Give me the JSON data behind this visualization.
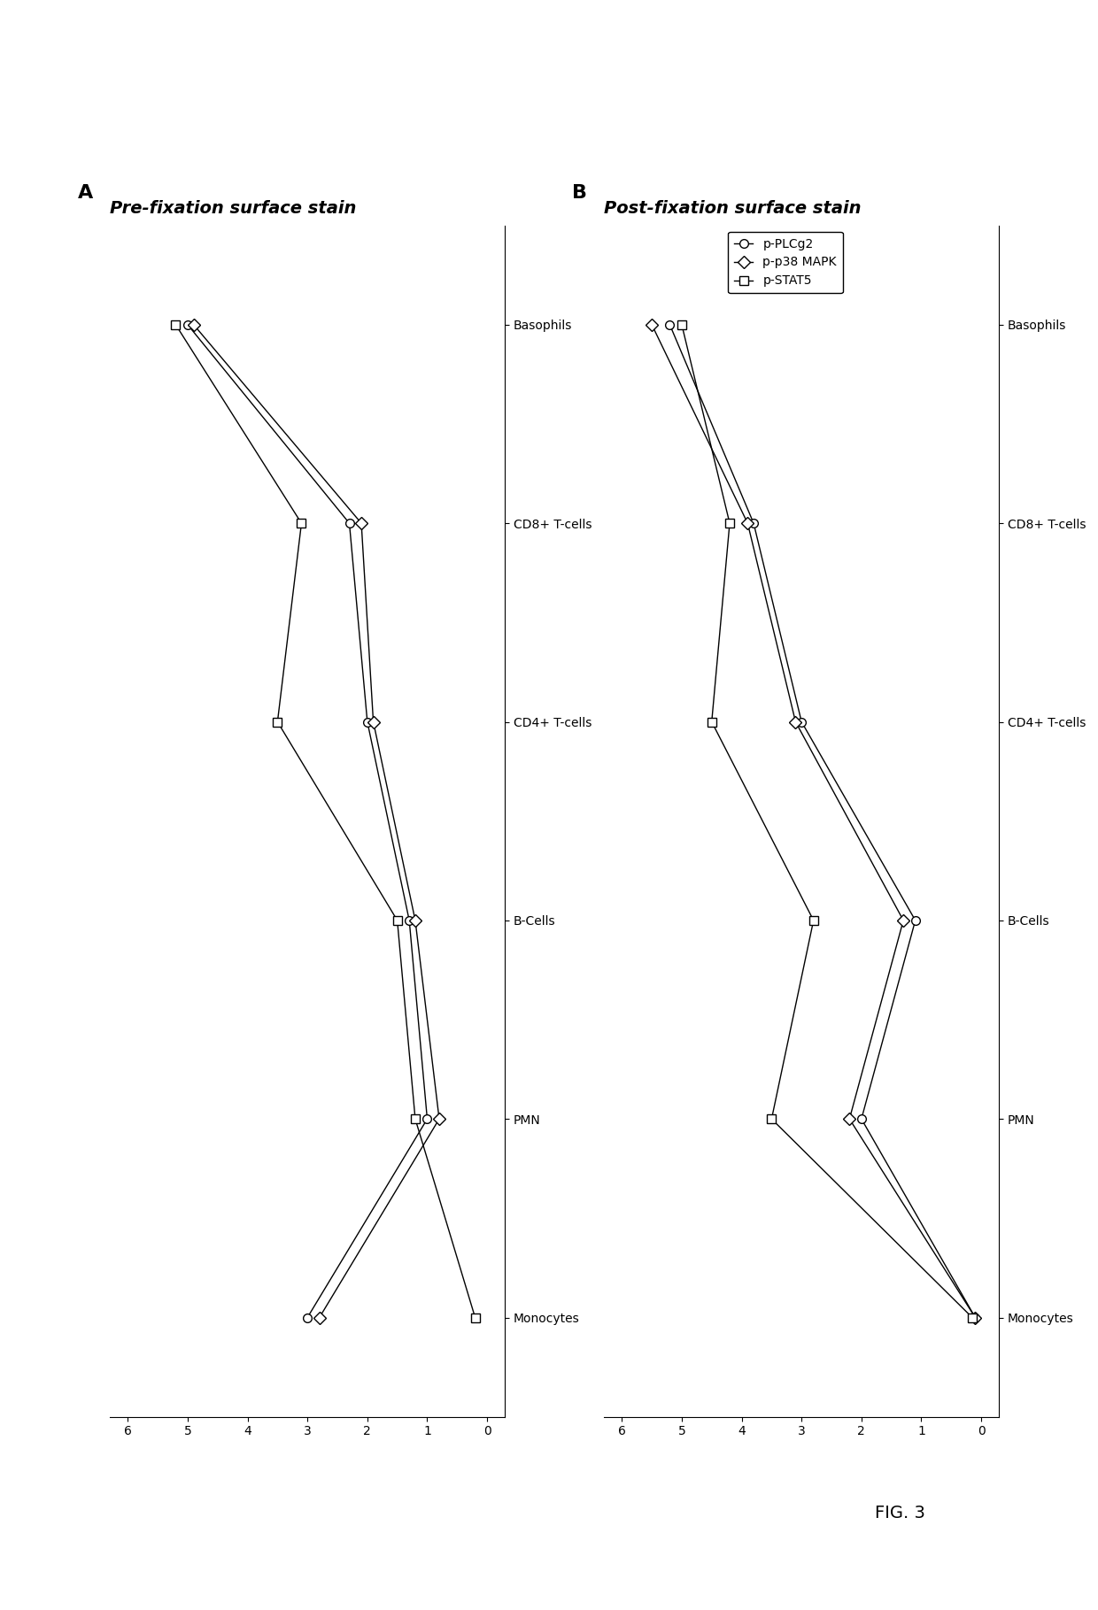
{
  "title_A": "Pre-fixation surface stain",
  "title_B": "Post-fixation surface stain",
  "label_A": "A",
  "label_B": "B",
  "fig_label": "FIG. 3",
  "cell_types": [
    "Monocytes",
    "PMN",
    "B-Cells",
    "CD4+ T-cells",
    "CD8+ T-cells",
    "Basophils"
  ],
  "markers": [
    "p-PLCg2",
    "p-p38 MAPK",
    "p-STAT5"
  ],
  "marker_symbols": [
    "o",
    "D",
    "s"
  ],
  "xlim": [
    6.3,
    -0.3
  ],
  "xticks": [
    6,
    5,
    4,
    3,
    2,
    1,
    0
  ],
  "panel_A": {
    "p-PLCg2": [
      3.0,
      1.0,
      1.3,
      2.0,
      2.3,
      5.0
    ],
    "p-p38 MAPK": [
      2.8,
      0.8,
      1.2,
      1.9,
      2.1,
      4.9
    ],
    "p-STAT5": [
      0.2,
      1.2,
      1.5,
      3.5,
      3.1,
      5.2
    ]
  },
  "panel_B": {
    "p-PLCg2": [
      0.1,
      2.0,
      1.1,
      3.0,
      3.8,
      5.2
    ],
    "p-p38 MAPK": [
      0.1,
      2.2,
      1.3,
      3.1,
      3.9,
      5.5
    ],
    "p-STAT5": [
      0.15,
      3.5,
      2.8,
      4.5,
      4.2,
      5.0
    ]
  },
  "background_color": "#ffffff",
  "line_color": "#000000",
  "marker_size": 7,
  "line_width": 1.0,
  "tick_fontsize": 10,
  "title_fontsize": 14,
  "label_fontsize": 16,
  "legend_fontsize": 10,
  "figsize": [
    12.4,
    18.19
  ],
  "dpi": 100
}
